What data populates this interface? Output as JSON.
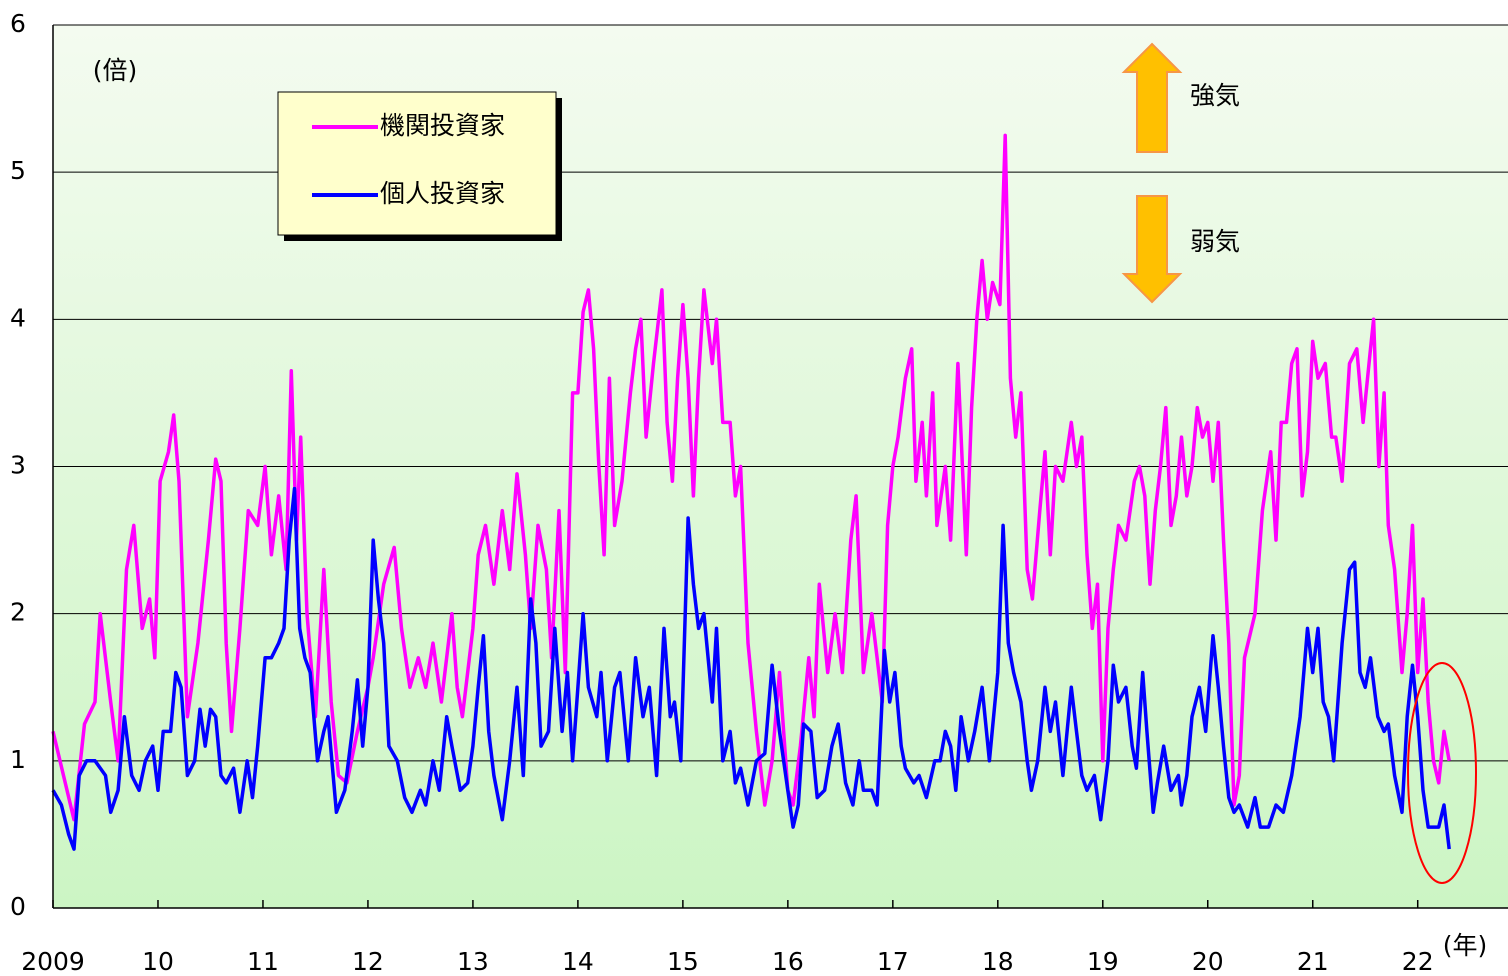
{
  "chart_data": {
    "type": "line",
    "annotations": {
      "unit": "(倍)",
      "bull": "強気",
      "bear": "弱気",
      "year_unit": "(年)"
    },
    "xlim": [
      2009,
      2022.86
    ],
    "ylim": [
      0,
      6
    ],
    "yticks": [
      0,
      1,
      2,
      3,
      4,
      5,
      6
    ],
    "xticks": [
      {
        "value": 2009,
        "label": "2009"
      },
      {
        "value": 2010,
        "label": "10"
      },
      {
        "value": 2011,
        "label": "11"
      },
      {
        "value": 2012,
        "label": "12"
      },
      {
        "value": 2013,
        "label": "13"
      },
      {
        "value": 2014,
        "label": "14"
      },
      {
        "value": 2015,
        "label": "15"
      },
      {
        "value": 2016,
        "label": "16"
      },
      {
        "value": 2017,
        "label": "17"
      },
      {
        "value": 2018,
        "label": "18"
      },
      {
        "value": 2019,
        "label": "19"
      },
      {
        "value": 2020,
        "label": "20"
      },
      {
        "value": 2021,
        "label": "21"
      },
      {
        "value": 2022,
        "label": "22"
      }
    ],
    "grid": true,
    "series": [
      {
        "name": "機関投資家",
        "color": "#ff00ff",
        "x": [
          2009.0,
          2009.1,
          2009.2,
          2009.3,
          2009.4,
          2009.45,
          2009.55,
          2009.62,
          2009.7,
          2009.77,
          2009.85,
          2009.92,
          2009.97,
          2010.02,
          2010.1,
          2010.15,
          2010.2,
          2010.28,
          2010.38,
          2010.48,
          2010.55,
          2010.6,
          2010.65,
          2010.7,
          2010.78,
          2010.86,
          2010.95,
          2011.02,
          2011.08,
          2011.15,
          2011.22,
          2011.27,
          2011.32,
          2011.36,
          2011.42,
          2011.5,
          2011.58,
          2011.65,
          2011.72,
          2011.8,
          2011.9,
          2012.0,
          2012.05,
          2012.15,
          2012.25,
          2012.32,
          2012.4,
          2012.48,
          2012.55,
          2012.62,
          2012.7,
          2012.8,
          2012.85,
          2012.9,
          2013.0,
          2013.05,
          2013.12,
          2013.2,
          2013.28,
          2013.35,
          2013.42,
          2013.5,
          2013.55,
          2013.62,
          2013.7,
          2013.75,
          2013.82,
          2013.88,
          2013.95,
          2014.0,
          2014.05,
          2014.1,
          2014.15,
          2014.2,
          2014.25,
          2014.3,
          2014.35,
          2014.42,
          2014.5,
          2014.55,
          2014.6,
          2014.65,
          2014.72,
          2014.8,
          2014.85,
          2014.9,
          2014.95,
          2015.0,
          2015.05,
          2015.1,
          2015.15,
          2015.2,
          2015.28,
          2015.32,
          2015.38,
          2015.45,
          2015.5,
          2015.55,
          2015.62,
          2015.7,
          2015.78,
          2015.85,
          2015.92,
          2016.0,
          2016.05,
          2016.12,
          2016.2,
          2016.25,
          2016.3,
          2016.38,
          2016.45,
          2016.52,
          2016.6,
          2016.65,
          2016.72,
          2016.8,
          2016.85,
          2016.9,
          2016.95,
          2017.0,
          2017.05,
          2017.12,
          2017.18,
          2017.22,
          2017.28,
          2017.32,
          2017.38,
          2017.42,
          2017.5,
          2017.55,
          2017.62,
          2017.7,
          2017.75,
          2017.8,
          2017.85,
          2017.9,
          2017.95,
          2018.02,
          2018.07,
          2018.12,
          2018.17,
          2018.22,
          2018.28,
          2018.33,
          2018.4,
          2018.45,
          2018.5,
          2018.55,
          2018.62,
          2018.7,
          2018.75,
          2018.8,
          2018.85,
          2018.9,
          2018.95,
          2019.0,
          2019.05,
          2019.1,
          2019.15,
          2019.22,
          2019.3,
          2019.35,
          2019.4,
          2019.45,
          2019.5,
          2019.55,
          2019.6,
          2019.65,
          2019.7,
          2019.75,
          2019.8,
          2019.85,
          2019.9,
          2019.95,
          2020.0,
          2020.05,
          2020.1,
          2020.15,
          2020.2,
          2020.25,
          2020.3,
          2020.35,
          2020.45,
          2020.52,
          2020.6,
          2020.65,
          2020.7,
          2020.75,
          2020.8,
          2020.85,
          2020.9,
          2020.95,
          2021.0,
          2021.05,
          2021.12,
          2021.18,
          2021.22,
          2021.28,
          2021.35,
          2021.42,
          2021.48,
          2021.55,
          2021.58,
          2021.63,
          2021.68,
          2021.72,
          2021.78,
          2021.85,
          2021.9,
          2021.95,
          2022.0,
          2022.05,
          2022.1,
          2022.15,
          2022.2,
          2022.25,
          2022.3
        ],
        "values": [
          1.2,
          0.9,
          0.6,
          1.25,
          1.4,
          2.0,
          1.4,
          1.0,
          2.3,
          2.6,
          1.9,
          2.1,
          1.7,
          2.9,
          3.1,
          3.35,
          2.9,
          1.3,
          1.8,
          2.5,
          3.05,
          2.9,
          1.8,
          1.2,
          1.9,
          2.7,
          2.6,
          3.0,
          2.4,
          2.8,
          2.3,
          3.65,
          2.5,
          3.2,
          2.0,
          1.3,
          2.3,
          1.4,
          0.9,
          0.85,
          1.2,
          1.5,
          1.7,
          2.2,
          2.45,
          1.9,
          1.5,
          1.7,
          1.5,
          1.8,
          1.4,
          2.0,
          1.5,
          1.3,
          1.9,
          2.4,
          2.6,
          2.2,
          2.7,
          2.3,
          2.95,
          2.4,
          1.9,
          2.6,
          2.3,
          1.7,
          2.7,
          1.6,
          3.5,
          3.5,
          4.05,
          4.2,
          3.8,
          3.0,
          2.4,
          3.6,
          2.6,
          2.9,
          3.5,
          3.8,
          4.0,
          3.2,
          3.7,
          4.2,
          3.3,
          2.9,
          3.6,
          4.1,
          3.6,
          2.8,
          3.6,
          4.2,
          3.7,
          4.0,
          3.3,
          3.3,
          2.8,
          3.0,
          1.8,
          1.2,
          0.7,
          1.0,
          1.6,
          0.8,
          0.7,
          1.1,
          1.7,
          1.3,
          2.2,
          1.6,
          2.0,
          1.6,
          2.5,
          2.8,
          1.6,
          2.0,
          1.7,
          1.4,
          2.6,
          3.0,
          3.2,
          3.6,
          3.8,
          2.9,
          3.3,
          2.8,
          3.5,
          2.6,
          3.0,
          2.5,
          3.7,
          2.4,
          3.4,
          4.0,
          4.4,
          4.0,
          4.25,
          4.1,
          5.25,
          3.6,
          3.2,
          3.5,
          2.3,
          2.1,
          2.7,
          3.1,
          2.4,
          3.0,
          2.9,
          3.3,
          3.0,
          3.2,
          2.4,
          1.9,
          2.2,
          1.0,
          1.9,
          2.3,
          2.6,
          2.5,
          2.9,
          3.0,
          2.8,
          2.2,
          2.7,
          3.0,
          3.4,
          2.6,
          2.8,
          3.2,
          2.8,
          3.0,
          3.4,
          3.2,
          3.3,
          2.9,
          3.3,
          2.5,
          1.8,
          0.7,
          0.9,
          1.7,
          2.0,
          2.7,
          3.1,
          2.5,
          3.3,
          3.3,
          3.7,
          3.8,
          2.8,
          3.1,
          3.85,
          3.6,
          3.7,
          3.2,
          3.2,
          2.9,
          3.7,
          3.8,
          3.3,
          3.8,
          4.0,
          3.0,
          3.5,
          2.6,
          2.3,
          1.6,
          2.0,
          2.6,
          1.6,
          2.1,
          1.4,
          1.0,
          0.85,
          1.2,
          1.0
        ]
      },
      {
        "name": "個人投資家",
        "color": "#0000ff",
        "x": [
          2009.0,
          2009.08,
          2009.15,
          2009.2,
          2009.25,
          2009.32,
          2009.4,
          2009.5,
          2009.55,
          2009.62,
          2009.68,
          2009.75,
          2009.82,
          2009.88,
          2009.95,
          2010.0,
          2010.05,
          2010.12,
          2010.17,
          2010.22,
          2010.28,
          2010.35,
          2010.4,
          2010.45,
          2010.5,
          2010.55,
          2010.6,
          2010.65,
          2010.72,
          2010.78,
          2010.85,
          2010.9,
          2010.95,
          2011.02,
          2011.08,
          2011.15,
          2011.2,
          2011.25,
          2011.3,
          2011.35,
          2011.4,
          2011.45,
          2011.52,
          2011.58,
          2011.62,
          2011.7,
          2011.78,
          2011.85,
          2011.9,
          2011.95,
          2012.0,
          2012.05,
          2012.1,
          2012.15,
          2012.2,
          2012.28,
          2012.35,
          2012.42,
          2012.5,
          2012.55,
          2012.62,
          2012.68,
          2012.75,
          2012.8,
          2012.88,
          2012.95,
          2013.0,
          2013.05,
          2013.1,
          2013.15,
          2013.2,
          2013.28,
          2013.35,
          2013.42,
          2013.48,
          2013.55,
          2013.6,
          2013.65,
          2013.72,
          2013.78,
          2013.85,
          2013.9,
          2013.95,
          2014.0,
          2014.05,
          2014.1,
          2014.18,
          2014.22,
          2014.28,
          2014.35,
          2014.4,
          2014.48,
          2014.55,
          2014.62,
          2014.68,
          2014.75,
          2014.82,
          2014.88,
          2014.92,
          2014.98,
          2015.05,
          2015.1,
          2015.15,
          2015.2,
          2015.28,
          2015.32,
          2015.38,
          2015.45,
          2015.5,
          2015.55,
          2015.62,
          2015.7,
          2015.78,
          2015.85,
          2015.92,
          2016.0,
          2016.05,
          2016.1,
          2016.15,
          2016.22,
          2016.28,
          2016.35,
          2016.42,
          2016.48,
          2016.55,
          2016.62,
          2016.68,
          2016.72,
          2016.8,
          2016.85,
          2016.92,
          2016.97,
          2017.02,
          2017.08,
          2017.12,
          2017.2,
          2017.25,
          2017.32,
          2017.4,
          2017.45,
          2017.5,
          2017.55,
          2017.6,
          2017.65,
          2017.72,
          2017.78,
          2017.85,
          2017.92,
          2018.0,
          2018.05,
          2018.1,
          2018.15,
          2018.22,
          2018.28,
          2018.32,
          2018.38,
          2018.45,
          2018.5,
          2018.55,
          2018.62,
          2018.7,
          2018.75,
          2018.8,
          2018.85,
          2018.92,
          2018.98,
          2019.05,
          2019.1,
          2019.15,
          2019.22,
          2019.28,
          2019.32,
          2019.38,
          2019.42,
          2019.48,
          2019.52,
          2019.58,
          2019.65,
          2019.72,
          2019.75,
          2019.8,
          2019.85,
          2019.92,
          2019.98,
          2020.05,
          2020.1,
          2020.15,
          2020.2,
          2020.25,
          2020.3,
          2020.38,
          2020.45,
          2020.5,
          2020.58,
          2020.65,
          2020.72,
          2020.8,
          2020.88,
          2020.95,
          2021.0,
          2021.05,
          2021.1,
          2021.15,
          2021.2,
          2021.28,
          2021.35,
          2021.4,
          2021.45,
          2021.5,
          2021.55,
          2021.62,
          2021.68,
          2021.72,
          2021.78,
          2021.85,
          2021.9,
          2021.95,
          2022.0,
          2022.05,
          2022.1,
          2022.15,
          2022.2,
          2022.25,
          2022.3
        ],
        "values": [
          0.8,
          0.7,
          0.5,
          0.4,
          0.9,
          1.0,
          1.0,
          0.9,
          0.65,
          0.8,
          1.3,
          0.9,
          0.8,
          1.0,
          1.1,
          0.8,
          1.2,
          1.2,
          1.6,
          1.5,
          0.9,
          1.0,
          1.35,
          1.1,
          1.35,
          1.3,
          0.9,
          0.85,
          0.95,
          0.65,
          1.0,
          0.75,
          1.1,
          1.7,
          1.7,
          1.8,
          1.9,
          2.5,
          2.85,
          1.9,
          1.7,
          1.6,
          1.0,
          1.2,
          1.3,
          0.65,
          0.8,
          1.2,
          1.55,
          1.1,
          1.5,
          2.5,
          2.1,
          1.8,
          1.1,
          1.0,
          0.75,
          0.65,
          0.8,
          0.7,
          1.0,
          0.8,
          1.3,
          1.1,
          0.8,
          0.85,
          1.1,
          1.5,
          1.85,
          1.2,
          0.9,
          0.6,
          1.0,
          1.5,
          0.9,
          2.1,
          1.8,
          1.1,
          1.2,
          1.9,
          1.2,
          1.6,
          1.0,
          1.5,
          2.0,
          1.5,
          1.3,
          1.6,
          1.0,
          1.5,
          1.6,
          1.0,
          1.7,
          1.3,
          1.5,
          0.9,
          1.9,
          1.3,
          1.4,
          1.0,
          2.65,
          2.2,
          1.9,
          2.0,
          1.4,
          1.9,
          1.0,
          1.2,
          0.85,
          0.95,
          0.7,
          1.0,
          1.05,
          1.65,
          1.2,
          0.8,
          0.55,
          0.7,
          1.25,
          1.2,
          0.75,
          0.8,
          1.1,
          1.25,
          0.85,
          0.7,
          1.0,
          0.8,
          0.8,
          0.7,
          1.75,
          1.4,
          1.6,
          1.1,
          0.95,
          0.85,
          0.9,
          0.75,
          1.0,
          1.0,
          1.2,
          1.1,
          0.8,
          1.3,
          1.0,
          1.2,
          1.5,
          1.0,
          1.6,
          2.6,
          1.8,
          1.6,
          1.4,
          1.0,
          0.8,
          1.0,
          1.5,
          1.2,
          1.4,
          0.9,
          1.5,
          1.2,
          0.9,
          0.8,
          0.9,
          0.6,
          1.0,
          1.65,
          1.4,
          1.5,
          1.1,
          0.95,
          1.6,
          1.2,
          0.65,
          0.85,
          1.1,
          0.8,
          0.9,
          0.7,
          0.9,
          1.3,
          1.5,
          1.2,
          1.85,
          1.5,
          1.1,
          0.75,
          0.65,
          0.7,
          0.55,
          0.75,
          0.55,
          0.55,
          0.7,
          0.65,
          0.9,
          1.3,
          1.9,
          1.6,
          1.9,
          1.4,
          1.3,
          1.0,
          1.8,
          2.3,
          2.35,
          1.6,
          1.5,
          1.7,
          1.3,
          1.2,
          1.25,
          0.9,
          0.65,
          1.3,
          1.65,
          1.3,
          0.8,
          0.55,
          0.55,
          0.55,
          0.7,
          0.4
        ]
      }
    ]
  }
}
